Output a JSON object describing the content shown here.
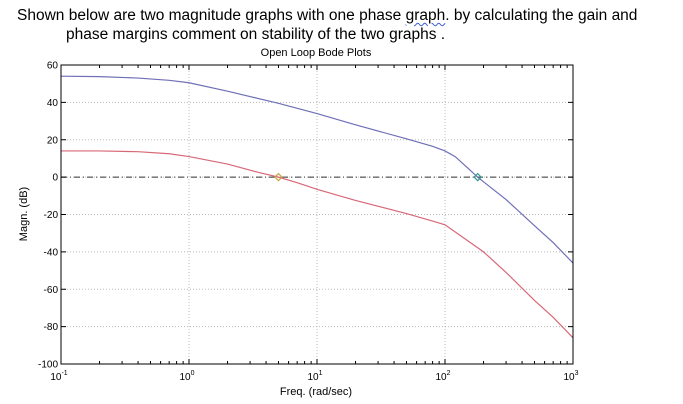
{
  "question": {
    "line1_pre": "Shown below are two magnitude graphs with one phase ",
    "line1_squiggle": "graph",
    "line1_post": ". by calculating the gain and",
    "line2": "phase margins comment on stability of the two graphs ."
  },
  "chart_data": {
    "type": "line",
    "title": "Open Loop Bode Plots",
    "xlabel": "Freq. (rad/sec)",
    "ylabel": "Magn. (dB)",
    "xscale": "log",
    "xlim": [
      0.1,
      1000
    ],
    "ylim": [
      -100,
      60
    ],
    "grid": true,
    "x_ticks": [
      {
        "value": 0.1,
        "base": "10",
        "exp": "-1"
      },
      {
        "value": 1,
        "base": "10",
        "exp": "0"
      },
      {
        "value": 10,
        "base": "10",
        "exp": "1"
      },
      {
        "value": 100,
        "base": "10",
        "exp": "2"
      },
      {
        "value": 1000,
        "base": "10",
        "exp": "3"
      }
    ],
    "y_ticks": [
      60,
      40,
      20,
      0,
      -20,
      -40,
      -60,
      -80,
      -100
    ],
    "zero_line": {
      "y": 0,
      "style": "dash-dot",
      "color": "#333333"
    },
    "series": [
      {
        "color": "#6f6fb8",
        "points": [
          [
            0.1,
            54
          ],
          [
            0.2,
            53.8
          ],
          [
            0.4,
            53
          ],
          [
            0.7,
            51.8
          ],
          [
            1,
            50.5
          ],
          [
            2,
            46
          ],
          [
            5,
            39.5
          ],
          [
            10,
            34
          ],
          [
            20,
            28
          ],
          [
            50,
            20.5
          ],
          [
            80,
            16.5
          ],
          [
            100,
            14
          ],
          [
            120,
            11
          ],
          [
            150,
            5
          ],
          [
            180,
            0
          ],
          [
            200,
            -2.5
          ],
          [
            300,
            -12
          ],
          [
            500,
            -26
          ],
          [
            700,
            -35
          ],
          [
            1000,
            -46
          ]
        ],
        "crossover": {
          "x": 180,
          "y": 0,
          "color": "#2a9a8a"
        }
      },
      {
        "color": "#d86878",
        "points": [
          [
            0.1,
            14
          ],
          [
            0.2,
            14
          ],
          [
            0.4,
            13.6
          ],
          [
            0.7,
            12.5
          ],
          [
            1,
            11
          ],
          [
            2,
            7
          ],
          [
            3.5,
            2.5
          ],
          [
            5,
            0
          ],
          [
            7,
            -3
          ],
          [
            10,
            -6.5
          ],
          [
            20,
            -12.5
          ],
          [
            50,
            -19.5
          ],
          [
            80,
            -23.5
          ],
          [
            100,
            -25.5
          ],
          [
            150,
            -34
          ],
          [
            200,
            -40
          ],
          [
            300,
            -51
          ],
          [
            500,
            -66
          ],
          [
            700,
            -75
          ],
          [
            1000,
            -86
          ]
        ],
        "crossover": {
          "x": 5,
          "y": 0,
          "color": "#c8a040"
        }
      }
    ]
  }
}
